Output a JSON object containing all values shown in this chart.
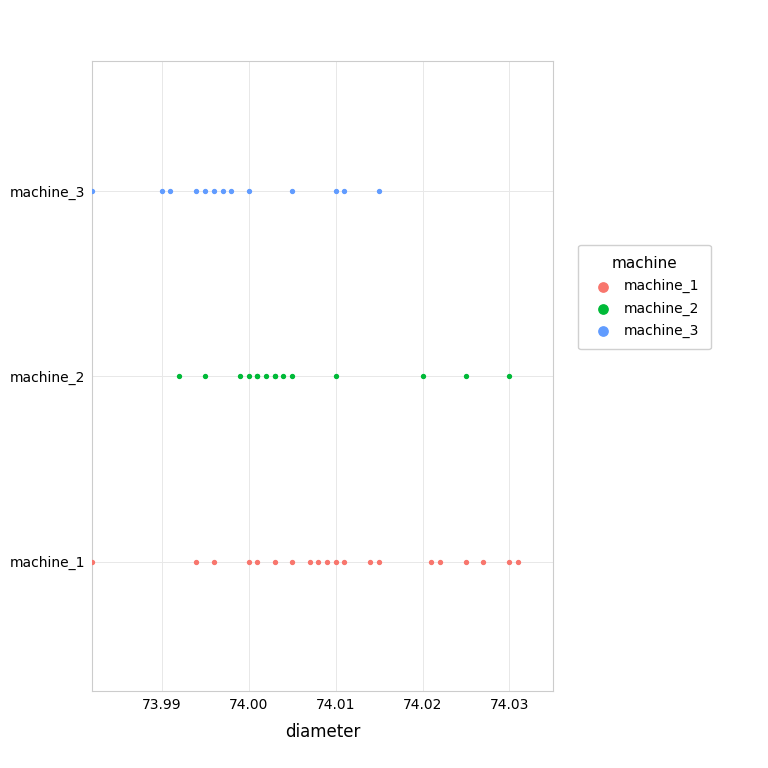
{
  "machine_1": [
    73.982,
    73.994,
    73.996,
    74.0,
    74.001,
    74.003,
    74.005,
    74.007,
    74.008,
    74.009,
    74.01,
    74.011,
    74.014,
    74.015,
    74.021,
    74.022,
    74.025,
    74.027,
    74.03,
    74.031
  ],
  "machine_2": [
    73.992,
    73.995,
    73.999,
    74.0,
    74.001,
    74.001,
    74.002,
    74.003,
    74.003,
    74.004,
    74.005,
    74.01,
    74.02,
    74.025,
    74.03
  ],
  "machine_3": [
    73.982,
    73.99,
    73.991,
    73.994,
    73.995,
    73.996,
    73.997,
    73.998,
    74.0,
    74.005,
    74.01,
    74.011,
    74.015
  ],
  "categories": [
    "machine_1",
    "machine_2",
    "machine_3"
  ],
  "colors": {
    "machine_1": "#F8766D",
    "machine_2": "#00BA38",
    "machine_3": "#619CFF"
  },
  "xlabel": "diameter",
  "ylabel": "machine",
  "legend_title": "machine",
  "xlim_left": 73.982,
  "xlim_right": 74.035,
  "xticks": [
    73.99,
    74.0,
    74.01,
    74.02,
    74.03
  ],
  "background_color": "#ffffff",
  "panel_background": "#ffffff",
  "grid_color": "#e8e8e8",
  "dot_size": 8
}
